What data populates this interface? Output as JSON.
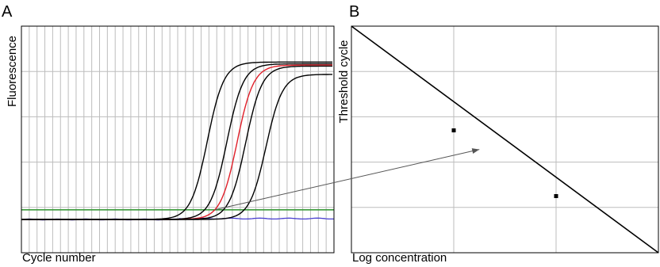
{
  "chart_data": [
    {
      "panel": "A",
      "type": "line",
      "xlabel": "Cycle number",
      "ylabel": "Fluorescence",
      "xlim": [
        0,
        40
      ],
      "ylim": [
        0,
        1
      ],
      "grid": true,
      "tick_labels_shown": false,
      "threshold": {
        "value": 0.055,
        "color": "#3a9a3a"
      },
      "amplification_curves": [
        {
          "midpoint": 23.8,
          "plateau": 0.895,
          "color": "#000000"
        },
        {
          "midpoint": 26.3,
          "plateau": 0.885,
          "color": "#000000"
        },
        {
          "midpoint": 27.6,
          "plateau": 0.878,
          "color": "#e0202a"
        },
        {
          "midpoint": 28.7,
          "plateau": 0.872,
          "color": "#000000"
        },
        {
          "midpoint": 31.3,
          "plateau": 0.825,
          "color": "#000000"
        }
      ],
      "negative_control": {
        "baseline": 0.0,
        "drift": 0.005,
        "color": "#4a3fd0"
      }
    },
    {
      "panel": "B",
      "type": "scatter",
      "xlabel": "Log concentration",
      "ylabel": "Threshold cycle",
      "xlim": [
        0,
        3
      ],
      "ylim": [
        0,
        5
      ],
      "grid": true,
      "tick_labels_shown": false,
      "standard_curve": {
        "x": [
          0,
          3
        ],
        "y": [
          5,
          0
        ]
      },
      "points": [
        {
          "x": 1.0,
          "y": 2.7
        },
        {
          "x": 2.0,
          "y": 1.25
        }
      ],
      "interpolated_point": {
        "x": 1.25,
        "y": 2.28
      }
    }
  ],
  "labels": {
    "panel_a": "A",
    "panel_b": "B"
  },
  "colors": {
    "grid": "#bdbdbd",
    "frame": "#000000",
    "arrow": "#555555"
  }
}
